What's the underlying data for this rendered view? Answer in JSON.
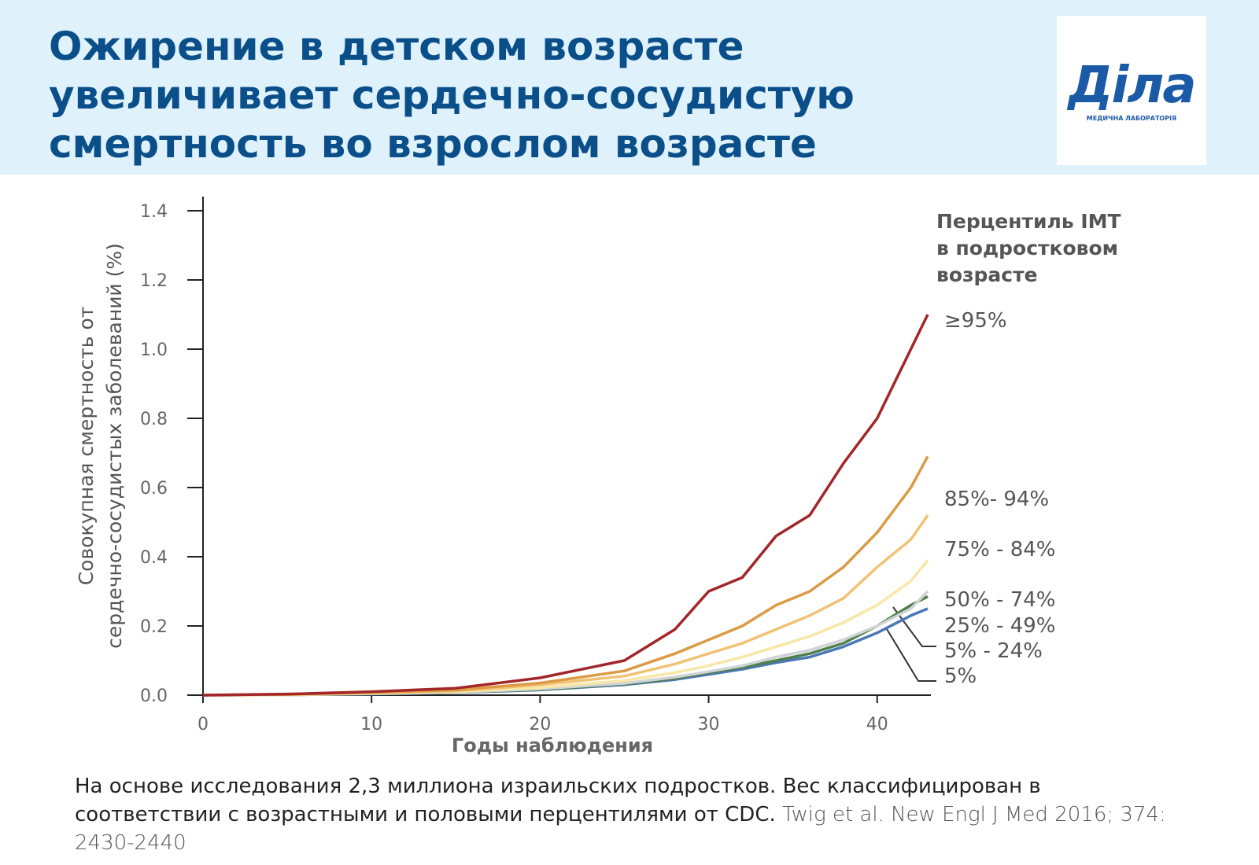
{
  "header": {
    "title": "Ожирение в детском возрасте увеличивает сердечно-сосудистую смертность во взрослом возрасте",
    "logo": {
      "name": "Діла",
      "subtitle": "МЕДИЧНА ЛАБОРАТОРІЯ"
    }
  },
  "chart_data": {
    "type": "line",
    "y_label": [
      "Совокупная смертность от",
      "сердечно-сосудистых заболеваний (%)"
    ],
    "x_label": "Годы наблюдения",
    "legend_title": [
      "Перцентиль ІМТ",
      "в подростковом",
      "возрасте"
    ],
    "x": [
      0,
      5,
      10,
      15,
      20,
      25,
      28,
      30,
      32,
      34,
      36,
      38,
      40,
      42,
      43
    ],
    "xlim": [
      0,
      43
    ],
    "xticks": [
      0,
      10,
      20,
      30,
      40
    ],
    "ylim": [
      0,
      1.4
    ],
    "yticks": [
      {
        "value": 0,
        "label": "0.0"
      },
      {
        "value": 0.2,
        "label": "0.2"
      },
      {
        "value": 0.4,
        "label": "0.4"
      },
      {
        "value": 0.6,
        "label": "0.6"
      },
      {
        "value": 0.8,
        "label": "0.8"
      },
      {
        "value": 1.0,
        "label": "1.0"
      },
      {
        "value": 1.2,
        "label": "1.2"
      },
      {
        "value": 1.4,
        "label": "1.4"
      }
    ],
    "series": [
      {
        "name": "≥95%",
        "color": "#a3262a",
        "values": [
          0,
          0.003,
          0.01,
          0.02,
          0.05,
          0.1,
          0.19,
          0.3,
          0.34,
          0.46,
          0.52,
          0.67,
          0.8,
          1.0,
          1.1
        ]
      },
      {
        "name": "85%- 94%",
        "color": "#dc9a45",
        "values": [
          0,
          0.002,
          0.008,
          0.015,
          0.035,
          0.07,
          0.12,
          0.16,
          0.2,
          0.26,
          0.3,
          0.37,
          0.47,
          0.6,
          0.69
        ]
      },
      {
        "name": "75% - 84%",
        "color": "#f1c274",
        "values": [
          0,
          0.002,
          0.006,
          0.012,
          0.03,
          0.055,
          0.09,
          0.12,
          0.15,
          0.19,
          0.23,
          0.28,
          0.37,
          0.45,
          0.52
        ]
      },
      {
        "name": "50% - 74%",
        "color": "#f8e7a6",
        "values": [
          0,
          0.001,
          0.005,
          0.01,
          0.022,
          0.042,
          0.065,
          0.085,
          0.11,
          0.14,
          0.17,
          0.21,
          0.26,
          0.33,
          0.39
        ]
      },
      {
        "name": "25% - 49%",
        "color": "#cfd3d6",
        "values": [
          0,
          0.001,
          0.004,
          0.008,
          0.018,
          0.034,
          0.052,
          0.068,
          0.085,
          0.11,
          0.13,
          0.16,
          0.2,
          0.25,
          0.3
        ]
      },
      {
        "name": "5%  - 24%",
        "color": "#4f7f4a",
        "values": [
          0,
          0.001,
          0.004,
          0.008,
          0.016,
          0.032,
          0.048,
          0.065,
          0.08,
          0.1,
          0.12,
          0.15,
          0.2,
          0.26,
          0.285
        ]
      },
      {
        "name": "5%",
        "color": "#4a78b8",
        "values": [
          0,
          0.001,
          0.003,
          0.007,
          0.015,
          0.03,
          0.045,
          0.06,
          0.075,
          0.094,
          0.11,
          0.14,
          0.18,
          0.23,
          0.25
        ]
      }
    ]
  },
  "footer": {
    "text": "На основе исследования 2,3 миллиона израильских подростков. Вес классифицирован в соответствии с возрастными и половыми перцентилями от CDC.",
    "citation": "Twig et al. New Engl J Med 2016; 374: 2430-2440"
  }
}
